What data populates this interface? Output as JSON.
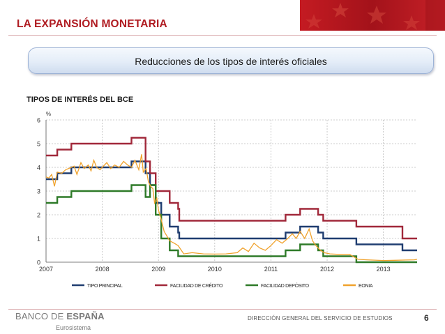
{
  "slide": {
    "title": "LA EXPANSIÓN MONETARIA",
    "subtitle": "Reducciones de los tipos de interés oficiales",
    "chart_heading": "TIPOS DE INTERÉS DEL BCE",
    "logo_prefix": "BANCO DE ",
    "logo_bold": "ESPAÑA",
    "logo_sub": "Eurosistema",
    "footer": "DIRECCIÓN GENERAL DEL SERVICIO DE ESTUDIOS",
    "page_number": "6"
  },
  "colors": {
    "title": "#b01c22",
    "principal": "#1f3d70",
    "credito": "#a1283a",
    "deposito": "#2e7a28",
    "eonia": "#f0a22c"
  },
  "chart_data": {
    "type": "line",
    "ylabel": "%",
    "ylim": [
      0,
      6
    ],
    "yticks": [
      0,
      1,
      2,
      3,
      4,
      5,
      6
    ],
    "xlim": [
      2007,
      2013.6
    ],
    "xticks": [
      "2007",
      "2008",
      "2009",
      "2010",
      "2011",
      "2012",
      "2013"
    ],
    "grid": true,
    "legend_position": "bottom",
    "series": [
      {
        "name": "TIPO PRINCIPAL",
        "color": "#1f3d70",
        "points": [
          [
            2007.0,
            3.5
          ],
          [
            2007.2,
            3.75
          ],
          [
            2007.45,
            4.0
          ],
          [
            2008.52,
            4.25
          ],
          [
            2008.77,
            3.75
          ],
          [
            2008.85,
            3.25
          ],
          [
            2008.95,
            2.5
          ],
          [
            2009.05,
            2.0
          ],
          [
            2009.2,
            1.5
          ],
          [
            2009.35,
            1.25
          ],
          [
            2009.37,
            1.0
          ],
          [
            2011.26,
            1.25
          ],
          [
            2011.52,
            1.5
          ],
          [
            2011.84,
            1.25
          ],
          [
            2011.93,
            1.0
          ],
          [
            2012.52,
            0.75
          ],
          [
            2013.34,
            0.5
          ],
          [
            2013.6,
            0.5
          ]
        ]
      },
      {
        "name": "FACILIDAD DE CRÉDITO",
        "color": "#a1283a",
        "points": [
          [
            2007.0,
            4.5
          ],
          [
            2007.2,
            4.75
          ],
          [
            2007.45,
            5.0
          ],
          [
            2008.52,
            5.25
          ],
          [
            2008.77,
            4.25
          ],
          [
            2008.85,
            3.75
          ],
          [
            2008.95,
            3.0
          ],
          [
            2009.2,
            2.5
          ],
          [
            2009.35,
            2.25
          ],
          [
            2009.37,
            1.75
          ],
          [
            2011.26,
            2.0
          ],
          [
            2011.52,
            2.25
          ],
          [
            2011.84,
            2.0
          ],
          [
            2011.93,
            1.75
          ],
          [
            2012.52,
            1.5
          ],
          [
            2013.34,
            1.0
          ],
          [
            2013.6,
            1.0
          ]
        ]
      },
      {
        "name": "FACILIDAD DEPÓSITO",
        "color": "#2e7a28",
        "points": [
          [
            2007.0,
            2.5
          ],
          [
            2007.2,
            2.75
          ],
          [
            2007.45,
            3.0
          ],
          [
            2008.52,
            3.25
          ],
          [
            2008.77,
            2.75
          ],
          [
            2008.85,
            3.25
          ],
          [
            2008.95,
            2.0
          ],
          [
            2009.05,
            1.0
          ],
          [
            2009.2,
            0.5
          ],
          [
            2009.35,
            0.25
          ],
          [
            2011.26,
            0.5
          ],
          [
            2011.52,
            0.75
          ],
          [
            2011.84,
            0.5
          ],
          [
            2011.93,
            0.25
          ],
          [
            2012.52,
            0.0
          ],
          [
            2013.6,
            0.0
          ]
        ]
      },
      {
        "name": "EONIA",
        "color": "#f0a22c",
        "points": [
          [
            2007.0,
            3.6
          ],
          [
            2007.05,
            3.55
          ],
          [
            2007.1,
            3.7
          ],
          [
            2007.15,
            3.2
          ],
          [
            2007.2,
            3.8
          ],
          [
            2007.28,
            3.75
          ],
          [
            2007.35,
            3.9
          ],
          [
            2007.45,
            4.0
          ],
          [
            2007.5,
            4.05
          ],
          [
            2007.55,
            3.7
          ],
          [
            2007.62,
            4.2
          ],
          [
            2007.68,
            3.95
          ],
          [
            2007.75,
            4.1
          ],
          [
            2007.8,
            3.85
          ],
          [
            2007.85,
            4.3
          ],
          [
            2007.9,
            4.0
          ],
          [
            2007.96,
            3.9
          ],
          [
            2008.0,
            4.0
          ],
          [
            2008.08,
            4.2
          ],
          [
            2008.15,
            3.95
          ],
          [
            2008.22,
            4.1
          ],
          [
            2008.3,
            4.0
          ],
          [
            2008.38,
            4.25
          ],
          [
            2008.45,
            4.1
          ],
          [
            2008.52,
            4.0
          ],
          [
            2008.58,
            4.3
          ],
          [
            2008.65,
            3.9
          ],
          [
            2008.7,
            4.55
          ],
          [
            2008.73,
            3.8
          ],
          [
            2008.78,
            3.95
          ],
          [
            2008.82,
            3.4
          ],
          [
            2008.86,
            3.2
          ],
          [
            2008.9,
            3.1
          ],
          [
            2008.93,
            2.5
          ],
          [
            2008.97,
            2.7
          ],
          [
            2009.0,
            2.2
          ],
          [
            2009.05,
            1.8
          ],
          [
            2009.1,
            1.3
          ],
          [
            2009.15,
            1.1
          ],
          [
            2009.2,
            0.9
          ],
          [
            2009.28,
            0.8
          ],
          [
            2009.35,
            0.7
          ],
          [
            2009.45,
            0.35
          ],
          [
            2009.6,
            0.4
          ],
          [
            2009.8,
            0.35
          ],
          [
            2010.0,
            0.34
          ],
          [
            2010.2,
            0.35
          ],
          [
            2010.4,
            0.4
          ],
          [
            2010.5,
            0.6
          ],
          [
            2010.6,
            0.45
          ],
          [
            2010.7,
            0.8
          ],
          [
            2010.8,
            0.6
          ],
          [
            2010.9,
            0.5
          ],
          [
            2011.0,
            0.7
          ],
          [
            2011.1,
            0.95
          ],
          [
            2011.2,
            0.8
          ],
          [
            2011.3,
            1.0
          ],
          [
            2011.38,
            1.2
          ],
          [
            2011.45,
            1.0
          ],
          [
            2011.52,
            1.3
          ],
          [
            2011.6,
            1.0
          ],
          [
            2011.68,
            1.4
          ],
          [
            2011.74,
            0.9
          ],
          [
            2011.8,
            0.7
          ],
          [
            2011.88,
            0.5
          ],
          [
            2011.95,
            0.4
          ],
          [
            2012.05,
            0.35
          ],
          [
            2012.2,
            0.33
          ],
          [
            2012.4,
            0.33
          ],
          [
            2012.55,
            0.12
          ],
          [
            2012.7,
            0.1
          ],
          [
            2013.0,
            0.07
          ],
          [
            2013.2,
            0.08
          ],
          [
            2013.4,
            0.09
          ],
          [
            2013.55,
            0.1
          ],
          [
            2013.6,
            0.12
          ]
        ]
      }
    ]
  }
}
